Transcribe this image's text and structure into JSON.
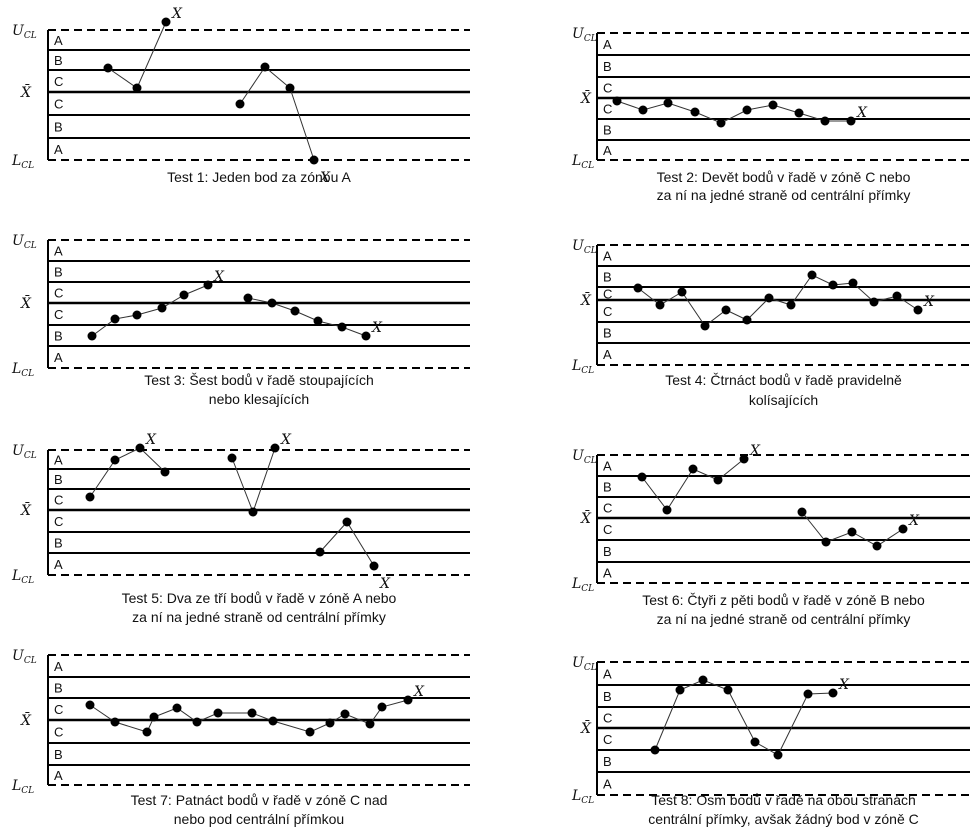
{
  "panels": [
    {
      "ucl": {
        "main": "U",
        "sub": "CL"
      },
      "center": "X̄",
      "lcl": {
        "main": "L",
        "sub": "CL"
      },
      "zones": [
        "A",
        "B",
        "C",
        "C",
        "B",
        "A"
      ],
      "flags": [
        "X",
        "X"
      ],
      "caption": [
        "Test 1: Jeden bod za zónou A"
      ]
    },
    {
      "ucl": {
        "main": "U",
        "sub": "CL"
      },
      "center": "X̄",
      "lcl": {
        "main": "L",
        "sub": "CL"
      },
      "zones": [
        "A",
        "B",
        "C",
        "C",
        "B",
        "A"
      ],
      "flags": [
        "X"
      ],
      "caption": [
        "Test 2: Devět bodů v řadě v zóně C nebo",
        "za ní na jedné straně od centrální přímky"
      ]
    },
    {
      "ucl": {
        "main": "U",
        "sub": "CL"
      },
      "center": "X̄",
      "lcl": {
        "main": "L",
        "sub": "CL"
      },
      "zones": [
        "A",
        "B",
        "C",
        "C",
        "B",
        "A"
      ],
      "flags": [
        "X",
        "X"
      ],
      "caption": [
        "Test 3: Šest bodů v řadě stoupajících",
        "nebo klesajících"
      ]
    },
    {
      "ucl": {
        "main": "U",
        "sub": "CL"
      },
      "center": "X̄",
      "lcl": {
        "main": "L",
        "sub": "CL"
      },
      "zones": [
        "A",
        "B",
        "C",
        "C",
        "B",
        "A"
      ],
      "flags": [
        "X"
      ],
      "caption": [
        "Test 4: Čtrnáct bodů v řadě pravidelně",
        "kolísajících"
      ]
    },
    {
      "ucl": {
        "main": "U",
        "sub": "CL"
      },
      "center": "X̄",
      "lcl": {
        "main": "L",
        "sub": "CL"
      },
      "zones": [
        "A",
        "B",
        "C",
        "C",
        "B",
        "A"
      ],
      "flags": [
        "X",
        "X",
        "X"
      ],
      "caption": [
        "Test 5: Dva ze tří bodů v řadě v zóně A nebo",
        "za ní na jedné straně od centrální přímky"
      ]
    },
    {
      "ucl": {
        "main": "U",
        "sub": "CL"
      },
      "center": "X̄",
      "lcl": {
        "main": "L",
        "sub": "CL"
      },
      "zones": [
        "A",
        "B",
        "C",
        "C",
        "B",
        "A"
      ],
      "flags": [
        "X",
        "X"
      ],
      "caption": [
        "Test 6: Čtyři z pěti bodů v řadě v zóně B nebo",
        "za ní na jedné straně od centrální přímky"
      ]
    },
    {
      "ucl": {
        "main": "U",
        "sub": "CL"
      },
      "center": "X̄",
      "lcl": {
        "main": "L",
        "sub": "CL"
      },
      "zones": [
        "A",
        "B",
        "C",
        "C",
        "B",
        "A"
      ],
      "flags": [
        "X"
      ],
      "caption": [
        "Test 7: Patnáct bodů v řadě v zóně C nad",
        "nebo pod centrální přímkou"
      ]
    },
    {
      "ucl": {
        "main": "U",
        "sub": "CL"
      },
      "center": "X̄",
      "lcl": {
        "main": "L",
        "sub": "CL"
      },
      "zones": [
        "A",
        "B",
        "C",
        "C",
        "B",
        "A"
      ],
      "flags": [
        "X"
      ],
      "caption": [
        "Test 8: Osm bodů v řadě na obou stranách",
        "centrální přímky, avšak žádný bod v zóně C"
      ]
    }
  ]
}
